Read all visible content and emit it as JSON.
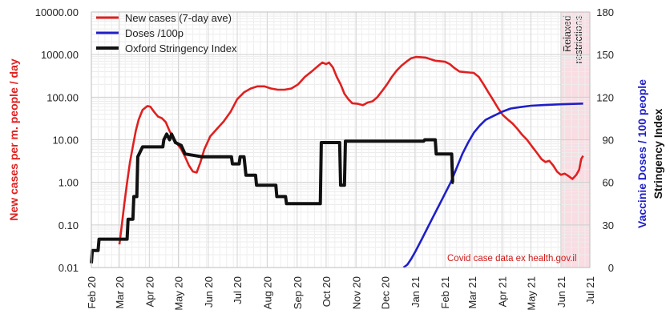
{
  "chart_data": {
    "type": "line",
    "x_tick_labels": [
      "Feb 20",
      "Mar 20",
      "Apr 20",
      "May 20",
      "Jun 20",
      "Jul 20",
      "Aug 20",
      "Sep 20",
      "Oct 20",
      "Nov 20",
      "Dec 20",
      "Jan 21",
      "Feb 21",
      "Mar 21",
      "Apr 21",
      "May 21",
      "Jun 21",
      "Jul 21"
    ],
    "x_range": [
      "2020-02-01",
      "2021-07-01"
    ],
    "y_left": {
      "label": "New cases per m. people / day",
      "scale": "log",
      "range": [
        0.01,
        10000
      ],
      "tick_labels": [
        "0.01",
        "0.10",
        "1.00",
        "10.00",
        "100.00",
        "1000.00",
        "10000.00"
      ],
      "color": "#e02020"
    },
    "y_right_ticks": {
      "range": [
        0,
        180
      ],
      "tick_labels": [
        "0",
        "30",
        "60",
        "90",
        "120",
        "150",
        "180"
      ]
    },
    "y_right_labels": {
      "doses": {
        "text": "Vaccinie Doses / 100 people",
        "color": "#1f1fc8"
      },
      "stringency": {
        "text": "Stringency Index",
        "color": "#111111"
      }
    },
    "shaded_region": {
      "label_line1": "Relaxed",
      "label_line2": "restrictions",
      "from": "2021-06-01",
      "to": "2021-07-01",
      "color": "#f9dde3"
    },
    "annotation": "Covid case data ex health.gov.il",
    "series": [
      {
        "name": "New cases (7-day ave)",
        "axis": "left",
        "color": "#e02020",
        "points": [
          [
            "2020-03-01",
            0.035
          ],
          [
            "2020-03-03",
            0.08
          ],
          [
            "2020-03-06",
            0.3
          ],
          [
            "2020-03-09",
            1.0
          ],
          [
            "2020-03-12",
            3
          ],
          [
            "2020-03-15",
            7
          ],
          [
            "2020-03-18",
            16
          ],
          [
            "2020-03-21",
            30
          ],
          [
            "2020-03-25",
            50
          ],
          [
            "2020-03-30",
            62
          ],
          [
            "2020-04-02",
            60
          ],
          [
            "2020-04-06",
            45
          ],
          [
            "2020-04-10",
            35
          ],
          [
            "2020-04-14",
            32
          ],
          [
            "2020-04-18",
            26
          ],
          [
            "2020-04-22",
            16
          ],
          [
            "2020-04-26",
            11
          ],
          [
            "2020-04-30",
            8
          ],
          [
            "2020-05-04",
            6
          ],
          [
            "2020-05-08",
            4
          ],
          [
            "2020-05-12",
            2.5
          ],
          [
            "2020-05-16",
            1.8
          ],
          [
            "2020-05-20",
            1.7
          ],
          [
            "2020-05-24",
            3
          ],
          [
            "2020-05-28",
            6
          ],
          [
            "2020-06-03",
            12
          ],
          [
            "2020-06-10",
            18
          ],
          [
            "2020-06-17",
            27
          ],
          [
            "2020-06-24",
            45
          ],
          [
            "2020-07-01",
            90
          ],
          [
            "2020-07-08",
            130
          ],
          [
            "2020-07-15",
            160
          ],
          [
            "2020-07-22",
            180
          ],
          [
            "2020-07-29",
            180
          ],
          [
            "2020-08-05",
            160
          ],
          [
            "2020-08-12",
            150
          ],
          [
            "2020-08-19",
            150
          ],
          [
            "2020-08-26",
            160
          ],
          [
            "2020-09-02",
            200
          ],
          [
            "2020-09-09",
            300
          ],
          [
            "2020-09-16",
            400
          ],
          [
            "2020-09-23",
            550
          ],
          [
            "2020-09-27",
            650
          ],
          [
            "2020-10-01",
            600
          ],
          [
            "2020-10-04",
            650
          ],
          [
            "2020-10-08",
            500
          ],
          [
            "2020-10-12",
            300
          ],
          [
            "2020-10-16",
            200
          ],
          [
            "2020-10-20",
            120
          ],
          [
            "2020-10-24",
            90
          ],
          [
            "2020-10-28",
            72
          ],
          [
            "2020-11-03",
            70
          ],
          [
            "2020-11-08",
            65
          ],
          [
            "2020-11-13",
            75
          ],
          [
            "2020-11-18",
            80
          ],
          [
            "2020-11-23",
            100
          ],
          [
            "2020-11-28",
            140
          ],
          [
            "2020-12-03",
            200
          ],
          [
            "2020-12-08",
            300
          ],
          [
            "2020-12-13",
            420
          ],
          [
            "2020-12-18",
            550
          ],
          [
            "2020-12-23",
            680
          ],
          [
            "2020-12-28",
            820
          ],
          [
            "2021-01-02",
            880
          ],
          [
            "2021-01-07",
            870
          ],
          [
            "2021-01-12",
            850
          ],
          [
            "2021-01-17",
            780
          ],
          [
            "2021-01-22",
            720
          ],
          [
            "2021-01-27",
            700
          ],
          [
            "2021-02-01",
            680
          ],
          [
            "2021-02-06",
            600
          ],
          [
            "2021-02-11",
            480
          ],
          [
            "2021-02-16",
            400
          ],
          [
            "2021-02-21",
            390
          ],
          [
            "2021-02-26",
            380
          ],
          [
            "2021-03-03",
            370
          ],
          [
            "2021-03-08",
            300
          ],
          [
            "2021-03-13",
            200
          ],
          [
            "2021-03-18",
            130
          ],
          [
            "2021-03-23",
            85
          ],
          [
            "2021-03-28",
            55
          ],
          [
            "2021-04-02",
            38
          ],
          [
            "2021-04-07",
            30
          ],
          [
            "2021-04-12",
            24
          ],
          [
            "2021-04-17",
            18
          ],
          [
            "2021-04-22",
            13
          ],
          [
            "2021-04-27",
            10
          ],
          [
            "2021-05-02",
            7
          ],
          [
            "2021-05-07",
            5
          ],
          [
            "2021-05-12",
            3.5
          ],
          [
            "2021-05-16",
            3
          ],
          [
            "2021-05-20",
            3.2
          ],
          [
            "2021-05-24",
            2.5
          ],
          [
            "2021-05-28",
            1.8
          ],
          [
            "2021-06-01",
            1.5
          ],
          [
            "2021-06-05",
            1.6
          ],
          [
            "2021-06-09",
            1.4
          ],
          [
            "2021-06-13",
            1.2
          ],
          [
            "2021-06-17",
            1.5
          ],
          [
            "2021-06-20",
            2.0
          ],
          [
            "2021-06-22",
            3.5
          ],
          [
            "2021-06-24",
            4.2
          ]
        ]
      },
      {
        "name": "Doses /100p",
        "axis": "right",
        "color": "#1f1fc8",
        "points": [
          [
            "2020-12-20",
            0
          ],
          [
            "2020-12-24",
            2
          ],
          [
            "2020-12-28",
            6
          ],
          [
            "2021-01-02",
            12
          ],
          [
            "2021-01-08",
            20
          ],
          [
            "2021-01-14",
            28
          ],
          [
            "2021-01-20",
            36
          ],
          [
            "2021-01-26",
            44
          ],
          [
            "2021-02-01",
            52
          ],
          [
            "2021-02-07",
            60
          ],
          [
            "2021-02-13",
            70
          ],
          [
            "2021-02-19",
            80
          ],
          [
            "2021-02-25",
            88
          ],
          [
            "2021-03-03",
            95
          ],
          [
            "2021-03-09",
            100
          ],
          [
            "2021-03-15",
            104
          ],
          [
            "2021-03-21",
            106
          ],
          [
            "2021-03-27",
            108
          ],
          [
            "2021-04-02",
            110
          ],
          [
            "2021-04-10",
            112
          ],
          [
            "2021-04-20",
            113
          ],
          [
            "2021-05-01",
            114
          ],
          [
            "2021-05-15",
            114.5
          ],
          [
            "2021-06-01",
            115
          ],
          [
            "2021-06-24",
            115.5
          ]
        ]
      },
      {
        "name": "Oxford Stringency Index",
        "axis": "right",
        "color": "#111111",
        "points": [
          [
            "2020-02-01",
            3
          ],
          [
            "2020-02-02",
            12
          ],
          [
            "2020-02-08",
            12
          ],
          [
            "2020-02-09",
            20
          ],
          [
            "2020-03-01",
            20
          ],
          [
            "2020-03-02",
            20
          ],
          [
            "2020-03-09",
            20
          ],
          [
            "2020-03-10",
            34
          ],
          [
            "2020-03-15",
            34
          ],
          [
            "2020-03-16",
            50
          ],
          [
            "2020-03-19",
            50
          ],
          [
            "2020-03-20",
            78
          ],
          [
            "2020-03-25",
            85
          ],
          [
            "2020-04-15",
            85
          ],
          [
            "2020-04-16",
            90
          ],
          [
            "2020-04-19",
            94
          ],
          [
            "2020-04-22",
            90
          ],
          [
            "2020-04-24",
            94
          ],
          [
            "2020-04-28",
            88
          ],
          [
            "2020-05-04",
            86
          ],
          [
            "2020-05-08",
            80
          ],
          [
            "2020-05-26",
            78
          ],
          [
            "2020-06-25",
            78
          ],
          [
            "2020-06-26",
            73
          ],
          [
            "2020-07-03",
            73
          ],
          [
            "2020-07-04",
            78
          ],
          [
            "2020-07-08",
            78
          ],
          [
            "2020-07-10",
            65
          ],
          [
            "2020-07-20",
            65
          ],
          [
            "2020-07-21",
            58
          ],
          [
            "2020-08-10",
            58
          ],
          [
            "2020-08-11",
            50
          ],
          [
            "2020-08-20",
            50
          ],
          [
            "2020-08-21",
            45
          ],
          [
            "2020-09-25",
            45
          ],
          [
            "2020-09-26",
            88
          ],
          [
            "2020-10-15",
            88
          ],
          [
            "2020-10-16",
            58
          ],
          [
            "2020-10-20",
            58
          ],
          [
            "2020-10-21",
            89
          ],
          [
            "2020-11-30",
            89
          ],
          [
            "2020-12-01",
            89
          ],
          [
            "2020-12-10",
            89
          ],
          [
            "2020-12-12",
            89
          ],
          [
            "2021-01-10",
            89
          ],
          [
            "2021-01-11",
            90
          ],
          [
            "2021-01-22",
            90
          ],
          [
            "2021-01-23",
            80
          ],
          [
            "2021-02-08",
            80
          ],
          [
            "2021-02-09",
            60
          ],
          [
            "2021-02-10",
            60
          ]
        ]
      }
    ]
  }
}
